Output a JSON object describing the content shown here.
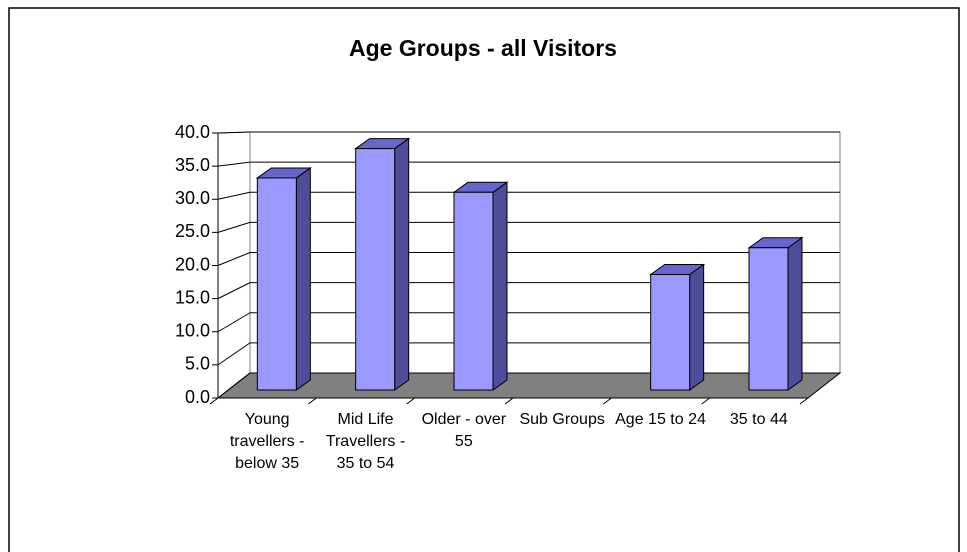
{
  "chart_data": {
    "type": "bar",
    "title": "Age Groups - all Visitors",
    "categories": [
      "Young travellers - below 35",
      "Mid Life Travellers - 35 to 54",
      "Older - over 55",
      "Sub Groups",
      "Age 15 to 24",
      "35 to 44"
    ],
    "values": [
      32.5,
      37.0,
      30.3,
      null,
      17.7,
      21.8
    ],
    "color": "#9999ff",
    "ylim": [
      0,
      40
    ],
    "yticks": [
      {
        "value": 0,
        "label": "0.0"
      },
      {
        "value": 5,
        "label": "5.0"
      },
      {
        "value": 10,
        "label": "10.0"
      },
      {
        "value": 15,
        "label": "15.0"
      },
      {
        "value": 20,
        "label": "20.0"
      },
      {
        "value": 25,
        "label": "25.0"
      },
      {
        "value": 30,
        "label": "30.0"
      },
      {
        "value": 35,
        "label": "35.0"
      },
      {
        "value": 40,
        "label": "40.0"
      }
    ],
    "grid": true
  }
}
